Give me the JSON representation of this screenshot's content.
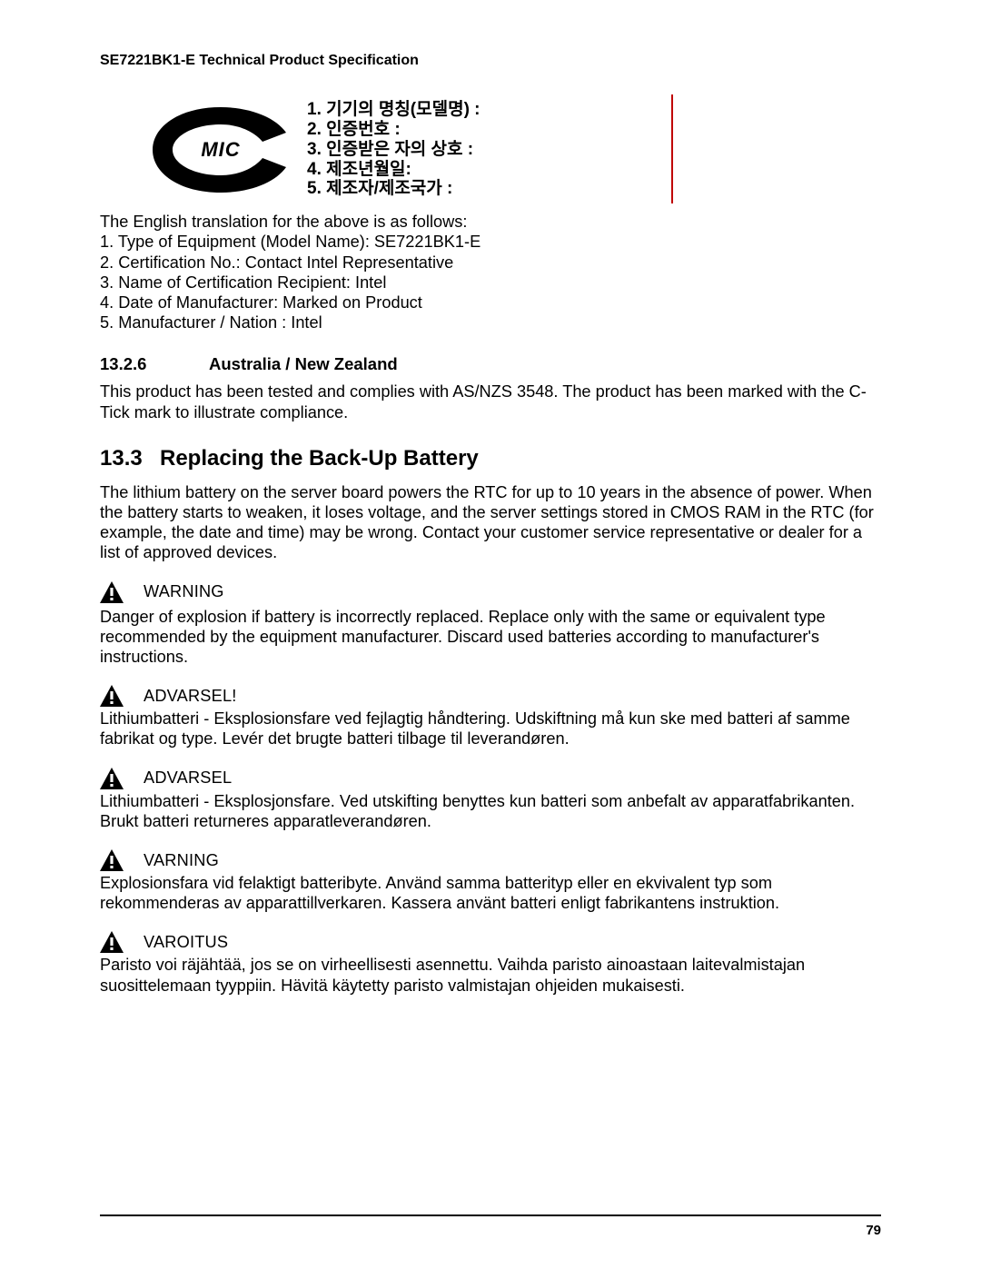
{
  "header": "SE7221BK1-E Technical Product Specification",
  "mic": {
    "label": "MIC",
    "items": [
      "1. 기기의 명칭(모델명) :",
      "2. 인증번호 :",
      "3. 인증받은 자의 상호 :",
      "4. 제조년월일:",
      "5. 제조자/제조국가 :"
    ]
  },
  "translation": {
    "intro": "The English translation for the above is as follows:",
    "items": [
      "1. Type of Equipment (Model Name):  SE7221BK1-E",
      "2. Certification No.: Contact Intel Representative",
      "3. Name of Certification Recipient: Intel",
      "4. Date of Manufacturer: Marked on Product",
      "5. Manufacturer / Nation : Intel"
    ]
  },
  "section_13_2_6": {
    "num": "13.2.6",
    "title": "Australia / New Zealand",
    "body": "This product has been tested and complies with AS/NZS 3548. The product has been marked with the C-Tick mark to illustrate compliance."
  },
  "section_13_3": {
    "num": "13.3",
    "title": "Replacing the Back-Up Battery",
    "body": "The lithium battery on the server board powers the RTC for up to 10 years in the absence of power. When the battery starts to weaken, it loses voltage, and the server settings stored in CMOS RAM in the RTC (for example, the date and time) may be wrong. Contact your customer service representative or dealer for a list of approved devices."
  },
  "warnings": [
    {
      "label": "WARNING",
      "tight": false,
      "text": "Danger of explosion if battery is incorrectly replaced. Replace only with the same or equivalent type recommended by the equipment manufacturer. Discard used batteries according to manufacturer's instructions."
    },
    {
      "label": "ADVARSEL!",
      "tight": true,
      "text": "Lithiumbatteri - Eksplosionsfare ved fejlagtig håndtering. Udskiftning må kun ske med batteri af samme fabrikat og type. Levér det brugte batteri tilbage til leverandøren."
    },
    {
      "label": "ADVARSEL",
      "tight": true,
      "text": "Lithiumbatteri - Eksplosjonsfare. Ved utskifting benyttes kun batteri som anbefalt av apparatfabrikanten. Brukt batteri returneres apparatleverandøren."
    },
    {
      "label": "VARNING",
      "tight": true,
      "text": "Explosionsfara vid felaktigt batteribyte. Använd samma batterityp eller en ekvivalent typ som rekommenderas av apparattillverkaren. Kassera använt batteri enligt fabrikantens instruktion."
    },
    {
      "label": "VAROITUS",
      "tight": true,
      "text": "Paristo voi räjähtää, jos se on virheellisesti asennettu. Vaihda paristo ainoastaan laitevalmistajan suosittelemaan tyyppiin. Hävitä käytetty paristo valmistajan ohjeiden mukaisesti."
    }
  ],
  "page_number": "79"
}
